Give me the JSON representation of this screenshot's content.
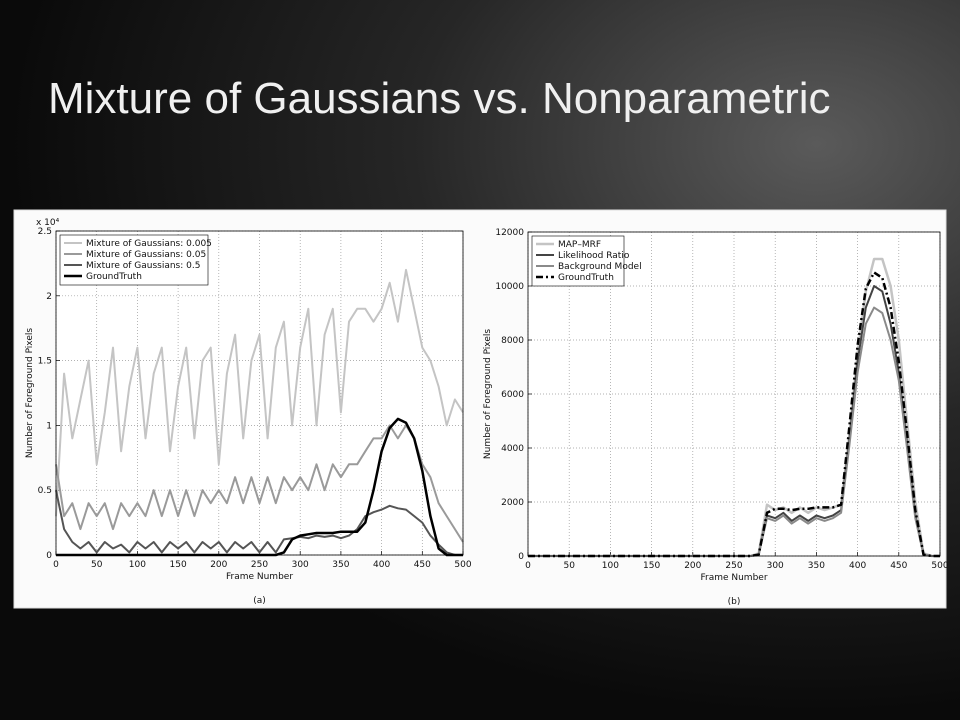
{
  "title": "Mixture of Gaussians vs. Nonparametric",
  "chart_data": [
    {
      "type": "line",
      "caption": "(a)",
      "x_label": "Frame Number",
      "y_label": "Number of Foreground Pixels",
      "y_multiplier": "x 10⁴",
      "xlim": [
        0,
        500
      ],
      "ylim": [
        0,
        2.5
      ],
      "xticks": [
        0,
        50,
        100,
        150,
        200,
        250,
        300,
        350,
        400,
        450,
        500
      ],
      "yticks": [
        0,
        0.5,
        1,
        1.5,
        2,
        2.5
      ],
      "grid": true,
      "legend": "upper left",
      "x": [
        0,
        10,
        20,
        30,
        40,
        50,
        60,
        70,
        80,
        90,
        100,
        110,
        120,
        130,
        140,
        150,
        160,
        170,
        180,
        190,
        200,
        210,
        220,
        230,
        240,
        250,
        260,
        270,
        280,
        290,
        300,
        310,
        320,
        330,
        340,
        350,
        360,
        370,
        380,
        390,
        400,
        410,
        420,
        430,
        440,
        450,
        460,
        470,
        480,
        490,
        500
      ],
      "series": [
        {
          "name": "Mixture of Gaussians: 0.005",
          "color": "#c4c4c4",
          "width": 2,
          "values": [
            0.3,
            1.4,
            0.9,
            1.2,
            1.5,
            0.7,
            1.1,
            1.6,
            0.8,
            1.3,
            1.6,
            0.9,
            1.4,
            1.6,
            0.8,
            1.3,
            1.6,
            0.9,
            1.5,
            1.6,
            0.7,
            1.4,
            1.7,
            0.9,
            1.5,
            1.7,
            0.9,
            1.6,
            1.8,
            1.0,
            1.6,
            1.9,
            1.0,
            1.7,
            1.9,
            1.1,
            1.8,
            1.9,
            1.9,
            1.8,
            1.9,
            2.1,
            1.8,
            2.2,
            1.9,
            1.6,
            1.5,
            1.3,
            1.0,
            1.2,
            1.1
          ]
        },
        {
          "name": "Mixture of Gaussians: 0.05",
          "color": "#9a9a9a",
          "width": 2,
          "values": [
            0.7,
            0.3,
            0.4,
            0.2,
            0.4,
            0.3,
            0.4,
            0.2,
            0.4,
            0.3,
            0.4,
            0.3,
            0.5,
            0.3,
            0.5,
            0.3,
            0.5,
            0.3,
            0.5,
            0.4,
            0.5,
            0.4,
            0.6,
            0.4,
            0.6,
            0.4,
            0.6,
            0.4,
            0.6,
            0.5,
            0.6,
            0.5,
            0.7,
            0.5,
            0.7,
            0.6,
            0.7,
            0.7,
            0.8,
            0.9,
            0.9,
            1.0,
            0.9,
            1.0,
            0.9,
            0.7,
            0.6,
            0.4,
            0.3,
            0.2,
            0.1
          ]
        },
        {
          "name": "Mixture of Gaussians: 0.5",
          "color": "#555555",
          "width": 2,
          "values": [
            0.5,
            0.2,
            0.1,
            0.05,
            0.1,
            0.02,
            0.1,
            0.05,
            0.08,
            0.02,
            0.1,
            0.05,
            0.1,
            0.02,
            0.1,
            0.05,
            0.1,
            0.02,
            0.1,
            0.05,
            0.1,
            0.02,
            0.1,
            0.05,
            0.1,
            0.02,
            0.1,
            0.02,
            0.12,
            0.13,
            0.14,
            0.13,
            0.15,
            0.14,
            0.15,
            0.13,
            0.15,
            0.2,
            0.3,
            0.33,
            0.35,
            0.38,
            0.36,
            0.35,
            0.3,
            0.25,
            0.15,
            0.08,
            0.02,
            0,
            0
          ]
        },
        {
          "name": "GroundTruth",
          "color": "#000000",
          "width": 2.5,
          "values": [
            0,
            0,
            0,
            0,
            0,
            0,
            0,
            0,
            0,
            0,
            0,
            0,
            0,
            0,
            0,
            0,
            0,
            0,
            0,
            0,
            0,
            0,
            0,
            0,
            0,
            0,
            0,
            0,
            0.02,
            0.12,
            0.15,
            0.16,
            0.17,
            0.17,
            0.17,
            0.18,
            0.18,
            0.18,
            0.25,
            0.5,
            0.8,
            0.98,
            1.05,
            1.02,
            0.9,
            0.65,
            0.3,
            0.05,
            0,
            0,
            0
          ]
        }
      ]
    },
    {
      "type": "line",
      "caption": "(b)",
      "x_label": "Frame Number",
      "y_label": "Number of Foreground Pixels",
      "xlim": [
        0,
        500
      ],
      "ylim": [
        0,
        12000
      ],
      "xticks": [
        0,
        50,
        100,
        150,
        200,
        250,
        300,
        350,
        400,
        450,
        500
      ],
      "yticks": [
        0,
        2000,
        4000,
        6000,
        8000,
        10000,
        12000
      ],
      "grid": true,
      "legend": "upper left",
      "x": [
        0,
        10,
        20,
        30,
        40,
        50,
        60,
        70,
        80,
        90,
        100,
        110,
        120,
        130,
        140,
        150,
        160,
        170,
        180,
        190,
        200,
        210,
        220,
        230,
        240,
        250,
        260,
        270,
        280,
        290,
        300,
        310,
        320,
        330,
        340,
        350,
        360,
        370,
        380,
        390,
        400,
        410,
        420,
        430,
        440,
        450,
        460,
        470,
        480,
        490,
        500
      ],
      "series": [
        {
          "name": "MAP–MRF",
          "color": "#c4c4c4",
          "width": 2.5,
          "values": [
            0,
            0,
            0,
            0,
            0,
            0,
            0,
            0,
            0,
            0,
            0,
            0,
            0,
            0,
            0,
            0,
            0,
            0,
            0,
            0,
            0,
            0,
            0,
            0,
            0,
            0,
            0,
            0,
            100,
            1900,
            1700,
            1800,
            1600,
            1800,
            1600,
            1800,
            1700,
            1800,
            1900,
            4500,
            7500,
            9800,
            11000,
            11000,
            10000,
            8000,
            5000,
            2000,
            100,
            0,
            0
          ]
        },
        {
          "name": "Likelihood Ratio",
          "color": "#444444",
          "width": 2,
          "values": [
            0,
            0,
            0,
            0,
            0,
            0,
            0,
            0,
            0,
            0,
            0,
            0,
            0,
            0,
            0,
            0,
            0,
            0,
            0,
            0,
            0,
            0,
            0,
            0,
            0,
            0,
            0,
            0,
            50,
            1500,
            1400,
            1600,
            1300,
            1500,
            1300,
            1500,
            1400,
            1500,
            1700,
            4300,
            7200,
            9200,
            10000,
            9800,
            8600,
            6800,
            4200,
            1500,
            50,
            0,
            0
          ]
        },
        {
          "name": "Background Model",
          "color": "#8a8a8a",
          "width": 2,
          "values": [
            0,
            0,
            0,
            0,
            0,
            0,
            0,
            0,
            0,
            0,
            0,
            0,
            0,
            0,
            0,
            0,
            0,
            0,
            0,
            0,
            0,
            0,
            0,
            0,
            0,
            0,
            0,
            0,
            50,
            1400,
            1300,
            1500,
            1200,
            1400,
            1200,
            1400,
            1300,
            1400,
            1600,
            4100,
            6800,
            8600,
            9200,
            9000,
            8000,
            6500,
            4000,
            1400,
            50,
            0,
            0
          ]
        },
        {
          "name": "GroundTruth",
          "color": "#000000",
          "width": 2.5,
          "line_style": "dash-dot",
          "values": [
            0,
            0,
            0,
            0,
            0,
            0,
            0,
            0,
            0,
            0,
            0,
            0,
            0,
            0,
            0,
            0,
            0,
            0,
            0,
            0,
            0,
            0,
            0,
            0,
            0,
            0,
            0,
            0,
            50,
            1600,
            1750,
            1750,
            1700,
            1750,
            1750,
            1800,
            1800,
            1800,
            1900,
            4800,
            7800,
            9900,
            10500,
            10300,
            9200,
            7200,
            4600,
            1700,
            50,
            0,
            0
          ]
        }
      ]
    }
  ]
}
